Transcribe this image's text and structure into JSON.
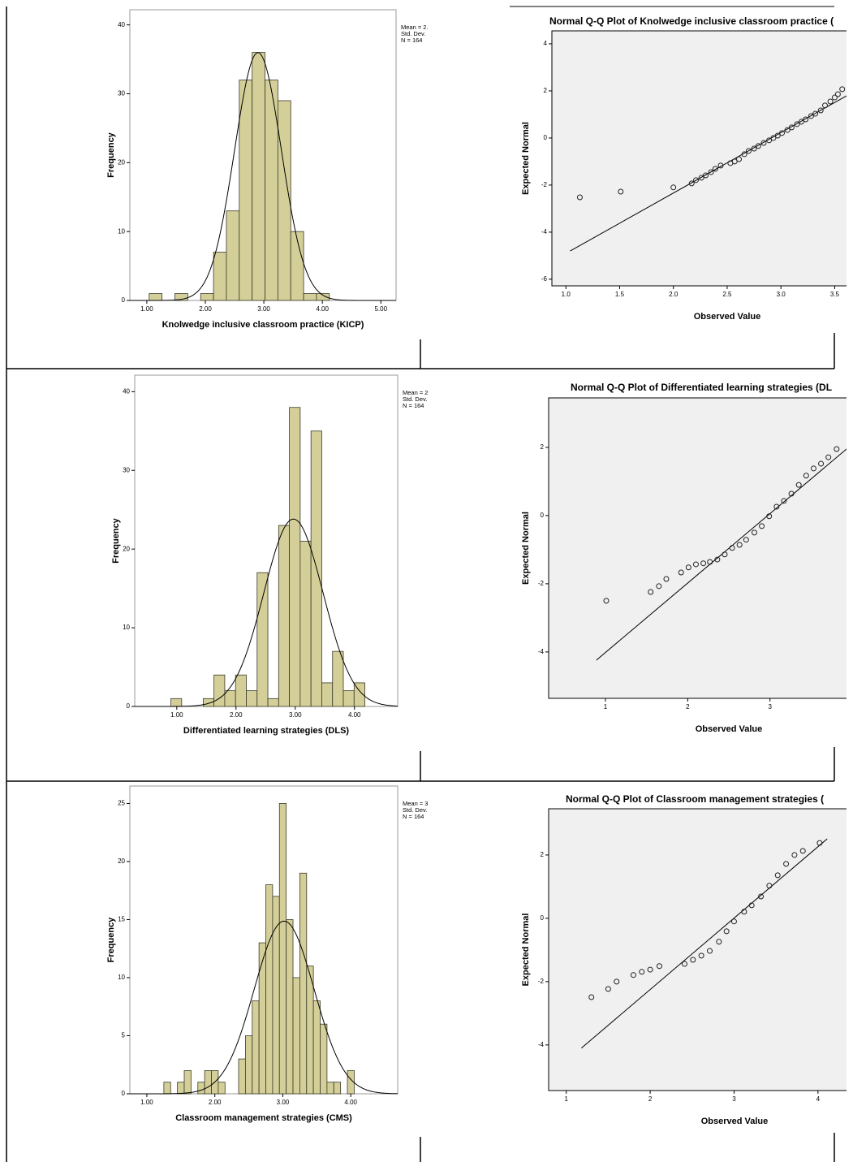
{
  "chart_data": [
    {
      "type": "histogram",
      "xlabel": "Knolwedge inclusive classroom practice (KICP)",
      "ylabel": "Frequency",
      "bins": [
        1.04,
        1.26,
        1.48,
        1.7,
        1.92,
        2.14,
        2.36,
        2.58,
        2.8,
        3.02,
        3.24,
        3.46,
        3.68,
        3.9,
        4.12
      ],
      "values": [
        1,
        0,
        1,
        0,
        1,
        7,
        13,
        32,
        36,
        32,
        29,
        10,
        1,
        1
      ],
      "color": "#d4cf98",
      "xlim": [
        0.71,
        5.26
      ],
      "ylim": [
        0,
        42.2
      ],
      "xticks": [
        {
          "value": 1,
          "label": "1.00"
        },
        {
          "value": 2,
          "label": "2.00"
        },
        {
          "value": 3,
          "label": "3.00"
        },
        {
          "value": 4,
          "label": "4.00"
        },
        {
          "value": 5,
          "label": "5.00"
        }
      ],
      "yticks": [
        0,
        10,
        20,
        30,
        40
      ],
      "normal_curve": {
        "mean": 2.9,
        "sd": 0.4,
        "n": 164
      },
      "legend_text": [
        "Mean = 2.",
        "Std. Dev.",
        "N = 164"
      ]
    },
    {
      "type": "histogram",
      "xlabel": "Differentiated learning strategies (DLS)",
      "ylabel": "Frequency",
      "bins": [
        0.9,
        1.082,
        1.264,
        1.446,
        1.628,
        1.81,
        1.992,
        2.174,
        2.356,
        2.538,
        2.72,
        2.902,
        3.084,
        3.266,
        3.448,
        3.63,
        3.812,
        3.994,
        4.176
      ],
      "values": [
        1,
        0,
        0,
        1,
        4,
        2,
        4,
        2,
        17,
        1,
        23,
        38,
        21,
        35,
        3,
        7,
        2,
        3
      ],
      "color": "#d4cf98",
      "xlim": [
        0.29,
        4.73
      ],
      "ylim": [
        0,
        42.1
      ],
      "xticks": [
        {
          "value": 1,
          "label": "1.00"
        },
        {
          "value": 2,
          "label": "2.00"
        },
        {
          "value": 3,
          "label": "3.00"
        },
        {
          "value": 4,
          "label": "4.00"
        }
      ],
      "yticks": [
        0,
        10,
        20,
        30,
        40
      ],
      "normal_curve": {
        "mean": 2.97,
        "sd": 0.5,
        "n": 164
      },
      "legend_text": [
        "Mean = 2",
        "Std. Dev.",
        "N = 164"
      ]
    },
    {
      "type": "histogram",
      "xlabel": "Classroom management strategies (CMS)",
      "ylabel": "Frequency",
      "bins": [
        1.25,
        1.35,
        1.45,
        1.55,
        1.65,
        1.75,
        1.85,
        1.95,
        2.05,
        2.15,
        2.25,
        2.35,
        2.45,
        2.55,
        2.65,
        2.75,
        2.85,
        2.95,
        3.05,
        3.15,
        3.25,
        3.35,
        3.45,
        3.55,
        3.65,
        3.75,
        3.85,
        3.95,
        4.05
      ],
      "values": [
        1,
        0,
        1,
        2,
        0,
        1,
        2,
        2,
        1,
        0,
        0,
        3,
        5,
        8,
        13,
        18,
        17,
        25,
        15,
        10,
        19,
        11,
        8,
        6,
        1,
        1,
        0,
        2
      ],
      "color": "#d4cf98",
      "xlim": [
        0.75,
        4.69
      ],
      "ylim": [
        0,
        26.5
      ],
      "xticks": [
        {
          "value": 1,
          "label": "1.00"
        },
        {
          "value": 2,
          "label": "2.00"
        },
        {
          "value": 3,
          "label": "3.00"
        },
        {
          "value": 4,
          "label": "4.00"
        }
      ],
      "yticks": [
        0,
        5,
        10,
        15,
        20,
        25
      ],
      "normal_curve": {
        "mean": 3.02,
        "sd": 0.44,
        "n": 164
      },
      "legend_text": [
        "Mean = 3",
        "Std. Dev.",
        "N = 164"
      ]
    },
    {
      "type": "scatter",
      "title": "Normal Q-Q Plot of Knolwedge inclusive classroom practice (",
      "xlabel": "Observed Value",
      "ylabel": "Expected Normal",
      "x": [
        1.13,
        1.51,
        2.0,
        2.17,
        2.21,
        2.26,
        2.3,
        2.35,
        2.39,
        2.44,
        2.53,
        2.57,
        2.61,
        2.66,
        2.7,
        2.75,
        2.79,
        2.84,
        2.89,
        2.93,
        2.97,
        3.01,
        3.06,
        3.1,
        3.15,
        3.19,
        3.23,
        3.28,
        3.32,
        3.37,
        3.41,
        3.46,
        3.5,
        3.53,
        3.57
      ],
      "y": [
        -2.52,
        -2.28,
        -2.1,
        -1.93,
        -1.79,
        -1.69,
        -1.59,
        -1.45,
        -1.31,
        -1.17,
        -1.07,
        -1.0,
        -0.9,
        -0.69,
        -0.55,
        -0.45,
        -0.34,
        -0.21,
        -0.1,
        0,
        0.1,
        0.21,
        0.34,
        0.45,
        0.59,
        0.69,
        0.79,
        0.93,
        1.03,
        1.17,
        1.38,
        1.55,
        1.72,
        1.86,
        2.07
      ],
      "line": {
        "x": [
          1.04,
          3.61
        ],
        "y": [
          -4.8,
          1.79
        ]
      },
      "xlim": [
        0.87,
        3.61
      ],
      "ylim": [
        -6.28,
        4.55
      ],
      "xticks": [
        {
          "value": 1,
          "label": "1.0"
        },
        1.5,
        {
          "value": 2,
          "label": "2.0"
        },
        2.5,
        {
          "value": 3,
          "label": "3.0"
        },
        3.5
      ],
      "yticks": [
        4,
        2,
        0,
        -2,
        -4,
        -6
      ]
    },
    {
      "type": "scatter",
      "title": "Normal Q-Q Plot of Differentiated learning strategies (DL",
      "xlabel": "Observed Value",
      "ylabel": "Expected Normal",
      "x": [
        1.01,
        1.55,
        1.65,
        1.74,
        1.92,
        2.01,
        2.1,
        2.19,
        2.27,
        2.36,
        2.45,
        2.54,
        2.63,
        2.71,
        2.81,
        2.9,
        2.99,
        3.08,
        3.17,
        3.26,
        3.35,
        3.44,
        3.53,
        3.62,
        3.71,
        3.81
      ],
      "y": [
        -2.5,
        -2.24,
        -2.07,
        -1.86,
        -1.67,
        -1.52,
        -1.43,
        -1.4,
        -1.36,
        -1.29,
        -1.14,
        -0.95,
        -0.86,
        -0.71,
        -0.5,
        -0.31,
        -0.02,
        0.26,
        0.43,
        0.64,
        0.9,
        1.17,
        1.38,
        1.52,
        1.71,
        1.95
      ],
      "line": {
        "x": [
          0.89,
          3.93
        ],
        "y": [
          -4.24,
          1.95
        ]
      },
      "xlim": [
        0.31,
        3.93
      ],
      "ylim": [
        -5.36,
        3.45
      ],
      "xticks": [
        1,
        2,
        3
      ],
      "yticks": [
        2,
        0,
        -2,
        -4
      ]
    },
    {
      "type": "scatter",
      "title": "Normal Q-Q Plot of Classroom management strategies (",
      "xlabel": "Observed Value",
      "ylabel": "Expected Normal",
      "x": [
        1.3,
        1.5,
        1.6,
        1.8,
        1.9,
        2.0,
        2.11,
        2.41,
        2.51,
        2.61,
        2.71,
        2.82,
        2.91,
        3.0,
        3.12,
        3.21,
        3.32,
        3.42,
        3.52,
        3.62,
        3.72,
        3.82,
        4.02
      ],
      "y": [
        -2.49,
        -2.23,
        -2.0,
        -1.79,
        -1.69,
        -1.62,
        -1.51,
        -1.44,
        -1.31,
        -1.18,
        -1.03,
        -0.74,
        -0.41,
        -0.1,
        0.21,
        0.41,
        0.69,
        1.03,
        1.36,
        1.72,
        2.0,
        2.13,
        2.38
      ],
      "line": {
        "x": [
          1.18,
          4.11
        ],
        "y": [
          -4.1,
          2.51
        ]
      },
      "xlim": [
        0.79,
        4.34
      ],
      "ylim": [
        -5.44,
        3.46
      ],
      "xticks": [
        1,
        2,
        3,
        4
      ],
      "yticks": [
        2,
        0,
        -2,
        -4
      ]
    }
  ]
}
